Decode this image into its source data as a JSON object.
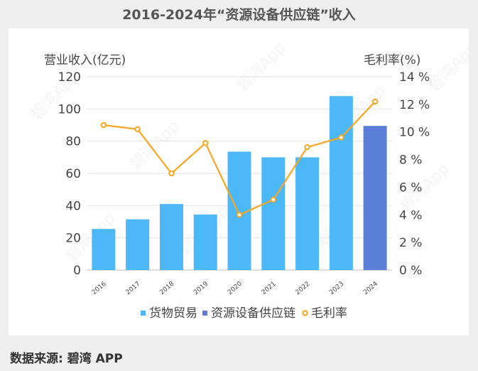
{
  "title": "2016-2024年“资源设备供应链”收入",
  "source": "数据来源: 碧湾 APP",
  "watermark": "碧湾App",
  "colors": {
    "goods": "#4db8f7",
    "equipment": "#5b7fd6",
    "margin": "#f5a623",
    "grid": "#e2e2e2"
  },
  "chart_data": {
    "type": "bar",
    "ylabel": "营业收入(亿元)",
    "y2label": "毛利率(%)",
    "ylim": [
      0,
      120
    ],
    "y2lim": [
      0,
      14
    ],
    "yticks": [
      "0",
      "20",
      "40",
      "60",
      "80",
      "100",
      "120"
    ],
    "y2ticks": [
      "0 %",
      "2 %",
      "4 %",
      "6 %",
      "8 %",
      "10 %",
      "12 %",
      "14 %"
    ],
    "categories": [
      "2016",
      "2017",
      "2018",
      "2019",
      "2020",
      "2021",
      "2022",
      "2023",
      "2024"
    ],
    "series": [
      {
        "name": "货物贸易",
        "kind": "bar",
        "values": [
          25.5,
          31.5,
          41,
          34.5,
          73.5,
          70,
          70,
          108,
          null
        ]
      },
      {
        "name": "资源设备供应链",
        "kind": "bar",
        "values": [
          null,
          null,
          null,
          null,
          null,
          null,
          null,
          null,
          89.5
        ]
      },
      {
        "name": "毛利率",
        "kind": "line",
        "axis": "right",
        "values": [
          10.5,
          10.2,
          7.0,
          9.2,
          4.0,
          5.1,
          8.9,
          9.6,
          12.2
        ]
      }
    ],
    "legend_position": "bottom",
    "grid": true
  }
}
